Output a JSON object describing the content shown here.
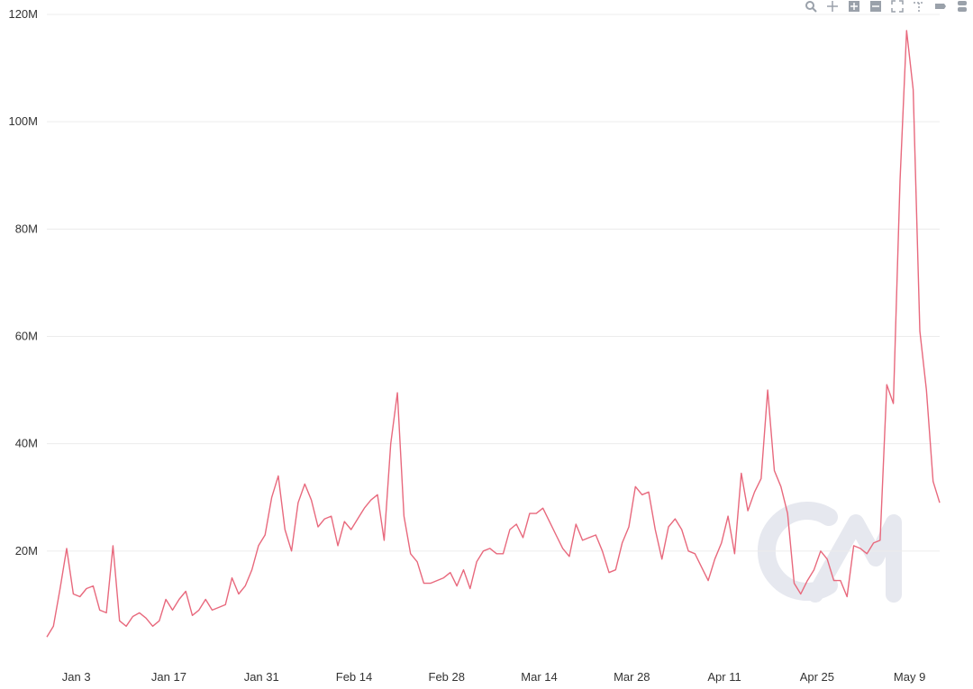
{
  "chart_data": {
    "type": "line",
    "title": "",
    "xlabel": "",
    "ylabel": "",
    "x_start": "2022-01-01",
    "x_tick_labels": [
      "Jan 3",
      "Jan 17",
      "Jan 31",
      "Feb 14",
      "Feb 28",
      "Mar 14",
      "Mar 28",
      "Apr 11",
      "Apr 25",
      "May 9"
    ],
    "y_tick_labels": [
      "20M",
      "40M",
      "60M",
      "80M",
      "100M",
      "120M"
    ],
    "y_tick_values": [
      20000000,
      40000000,
      60000000,
      80000000,
      100000000,
      120000000
    ],
    "ylim": [
      0,
      120000000
    ],
    "grid": true,
    "line_color": "#e8697d",
    "series": [
      {
        "values": [
          4000000,
          6000000,
          13000000,
          20500000,
          12000000,
          11500000,
          13000000,
          13500000,
          9000000,
          8500000,
          21000000,
          7000000,
          6000000,
          7800000,
          8500000,
          7500000,
          6000000,
          7000000,
          11000000,
          9000000,
          11000000,
          12500000,
          8000000,
          9000000,
          11000000,
          9000000,
          9500000,
          10000000,
          15000000,
          12000000,
          13500000,
          16500000,
          21000000,
          23000000,
          30000000,
          34000000,
          24000000,
          20000000,
          29000000,
          32500000,
          29500000,
          24500000,
          26000000,
          26500000,
          21000000,
          25500000,
          24000000,
          26000000,
          28000000,
          29500000,
          30500000,
          22000000,
          40000000,
          49500000,
          26500000,
          19500000,
          18000000,
          14000000,
          14000000,
          14500000,
          15000000,
          16000000,
          13500000,
          16500000,
          13000000,
          18000000,
          20000000,
          20500000,
          19500000,
          19500000,
          24000000,
          25000000,
          22500000,
          27000000,
          27000000,
          28000000,
          25500000,
          23000000,
          20500000,
          19000000,
          25000000,
          22000000,
          22500000,
          23000000,
          20000000,
          16000000,
          16500000,
          21500000,
          24500000,
          32000000,
          30500000,
          31000000,
          24000000,
          18500000,
          24500000,
          26000000,
          24000000,
          20000000,
          19500000,
          17000000,
          14500000,
          18500000,
          21500000,
          26500000,
          19500000,
          34500000,
          27500000,
          31000000,
          33500000,
          50000000,
          35000000,
          32000000,
          27000000,
          14000000,
          12000000,
          14500000,
          16500000,
          20000000,
          18500000,
          14500000,
          14500000,
          11500000,
          21000000,
          20500000,
          19500000,
          21500000,
          22000000,
          51000000,
          47500000,
          89000000,
          117000000,
          106000000,
          61000000,
          50000000,
          33000000,
          29000000
        ]
      }
    ]
  },
  "toolbar": {
    "icons": [
      "zoom-icon",
      "pan-icon",
      "zoom-in-icon",
      "zoom-out-icon",
      "autoscale-icon",
      "spike-icon",
      "hover-icon",
      "more-icon"
    ]
  },
  "watermark": {
    "text": "CM",
    "color": "#e6e8ef"
  }
}
